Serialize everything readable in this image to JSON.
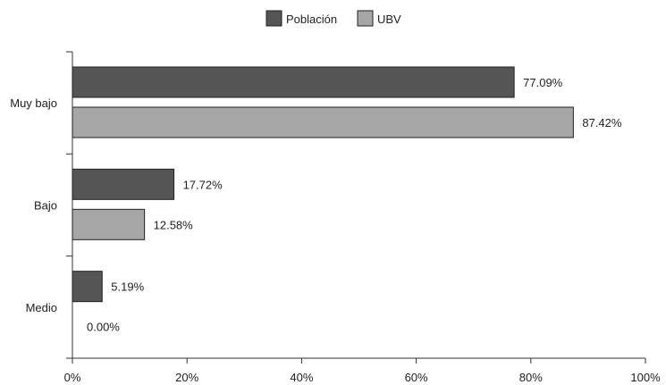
{
  "chart_data": {
    "type": "bar",
    "orientation": "horizontal",
    "categories": [
      "Muy bajo",
      "Bajo",
      "Medio"
    ],
    "series": [
      {
        "name": "Población",
        "values": [
          77.09,
          17.72,
          5.19
        ],
        "labels": [
          "77.09%",
          "17.72%",
          "5.19%"
        ],
        "color": "#555555"
      },
      {
        "name": "UBV",
        "values": [
          87.42,
          12.58,
          0.0
        ],
        "labels": [
          "87.42%",
          "12.58%",
          "0.00%"
        ],
        "color": "#a6a6a6"
      }
    ],
    "xlim": [
      0,
      100
    ],
    "xticks": [
      0,
      20,
      40,
      60,
      80,
      100
    ],
    "xtick_labels": [
      "0%",
      "20%",
      "40%",
      "60%",
      "80%",
      "100%"
    ],
    "title": "",
    "xlabel": "",
    "ylabel": "",
    "grid": false,
    "legend_position": "top-center"
  }
}
